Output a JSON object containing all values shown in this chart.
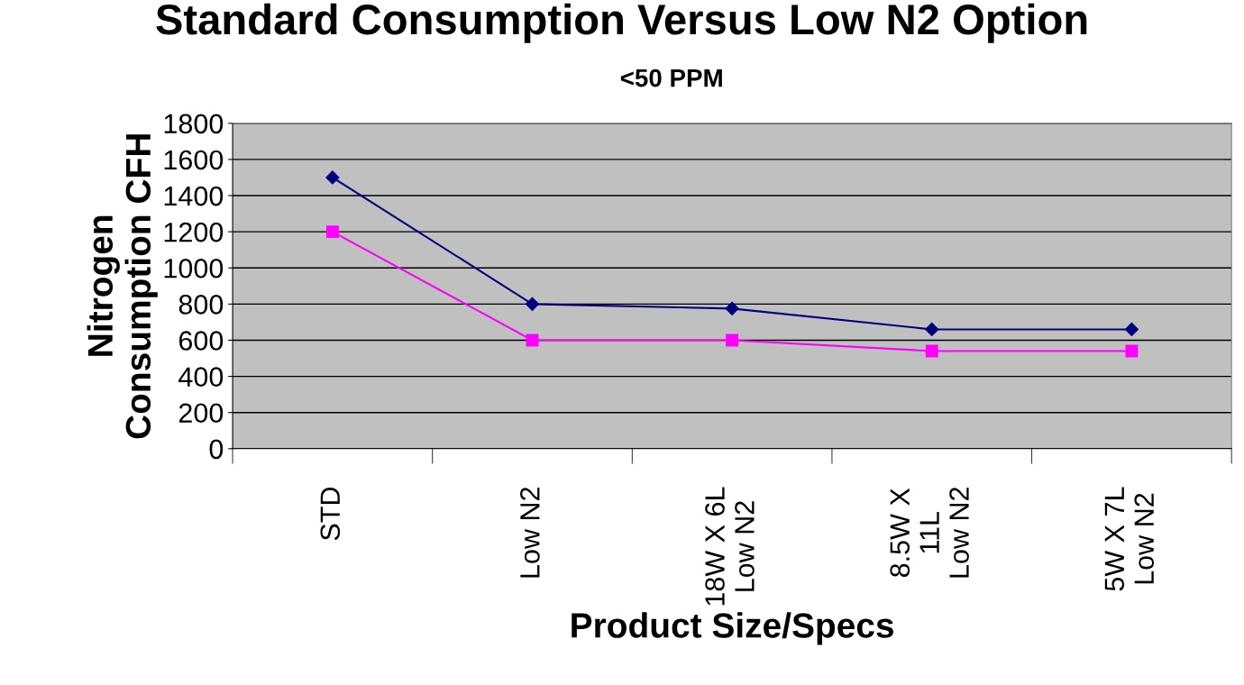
{
  "chart_data": {
    "type": "line",
    "title": "Standard Consumption Versus Low N2 Option",
    "subtitle": "<50 PPM",
    "xlabel": "Product Size/Specs",
    "ylabel": "Nitrogen\nConsumption CFH",
    "categories": [
      "STD",
      "Low N2",
      "18W X 6L\nLow N2",
      "8.5W X\n11L\nLow N2",
      "5W X 7L\nLow N2"
    ],
    "series": [
      {
        "color": "#000080",
        "marker": "diamond",
        "values": [
          1500,
          800,
          775,
          660,
          660
        ]
      },
      {
        "color": "#ff00ff",
        "marker": "square",
        "values": [
          1200,
          600,
          600,
          540,
          540
        ]
      }
    ],
    "ylim": [
      0,
      1800
    ],
    "yticks": [
      0,
      200,
      400,
      600,
      800,
      1000,
      1200,
      1400,
      1600,
      1800
    ],
    "grid": "y"
  }
}
